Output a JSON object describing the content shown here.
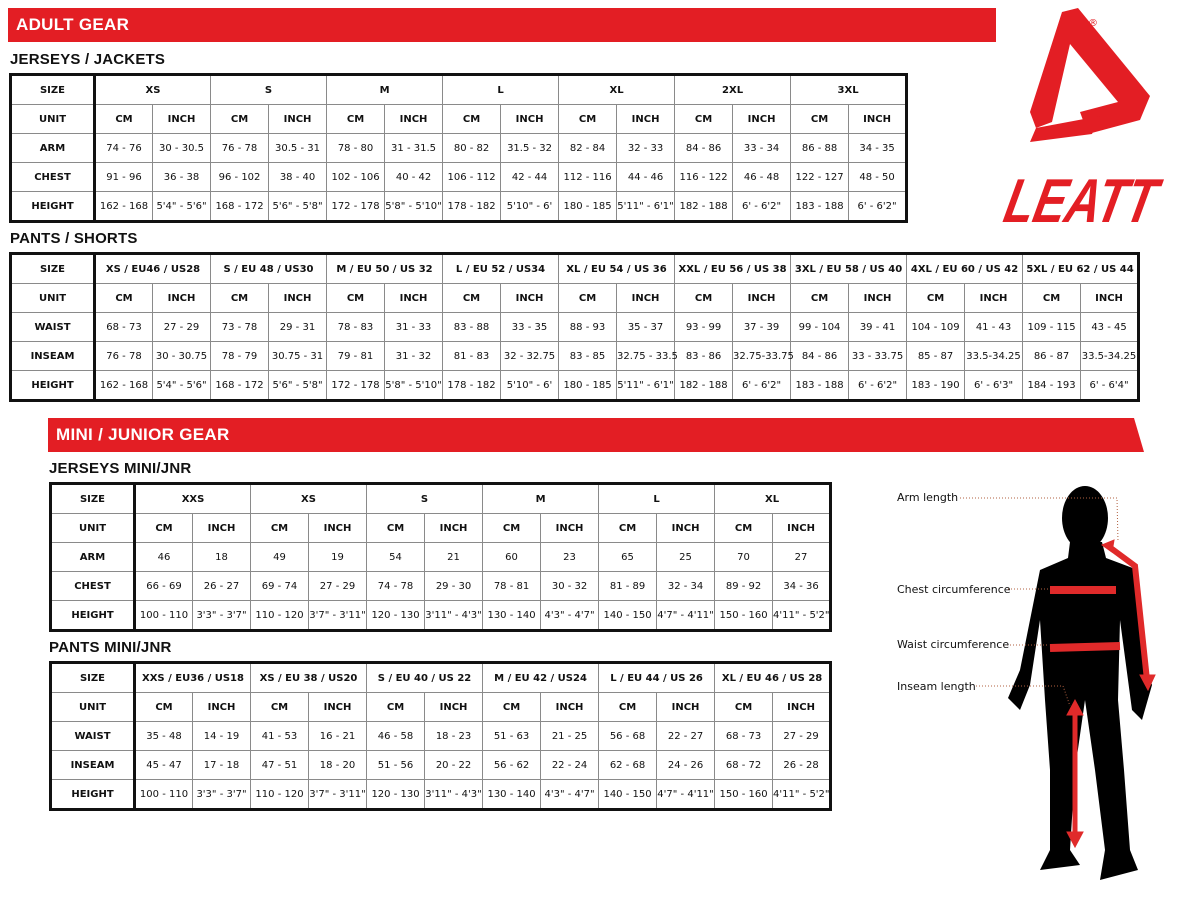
{
  "brand": {
    "logo_text": "LEATT",
    "registered_mark": "®",
    "accent_color": "#e31e24"
  },
  "adult_banner": "ADULT GEAR",
  "mini_banner": "MINI / JUNIOR GEAR",
  "tables": {
    "jackets": {
      "title": "JERSEYS / JACKETS",
      "size_label": "SIZE",
      "unit_label": "UNIT",
      "sizes": [
        "XS",
        "S",
        "M",
        "L",
        "XL",
        "2XL",
        "3XL"
      ],
      "units": [
        "CM",
        "INCH"
      ],
      "rows": [
        {
          "label": "ARM",
          "values": [
            "74 - 76",
            "30 - 30.5",
            "76 - 78",
            "30.5 - 31",
            "78 - 80",
            "31 - 31.5",
            "80 - 82",
            "31.5 - 32",
            "82 - 84",
            "32 - 33",
            "84 - 86",
            "33 - 34",
            "86 - 88",
            "34 - 35"
          ]
        },
        {
          "label": "CHEST",
          "values": [
            "91 - 96",
            "36 - 38",
            "96 - 102",
            "38 - 40",
            "102 - 106",
            "40 - 42",
            "106 - 112",
            "42 - 44",
            "112 - 116",
            "44 - 46",
            "116 - 122",
            "46 - 48",
            "122 - 127",
            "48 - 50"
          ]
        },
        {
          "label": "HEIGHT",
          "values": [
            "162 - 168",
            "5'4\" - 5'6\"",
            "168 - 172",
            "5'6\" - 5'8\"",
            "172 - 178",
            "5'8\" - 5'10\"",
            "178 - 182",
            "5'10\" - 6'",
            "180 - 185",
            "5'11\" - 6'1\"",
            "182 - 188",
            "6' - 6'2\"",
            "183 - 188",
            "6' - 6'2\""
          ]
        }
      ]
    },
    "pants": {
      "title": "PANTS / SHORTS",
      "size_label": "SIZE",
      "unit_label": "UNIT",
      "sizes": [
        "XS / EU46 / US28",
        "S / EU 48 / US30",
        "M / EU 50 / US 32",
        "L / EU 52 / US34",
        "XL / EU 54 / US 36",
        "XXL / EU 56 / US 38",
        "3XL / EU 58 / US 40",
        "4XL / EU 60 / US 42",
        "5XL / EU 62 / US 44"
      ],
      "units": [
        "CM",
        "INCH"
      ],
      "rows": [
        {
          "label": "WAIST",
          "values": [
            "68 - 73",
            "27 - 29",
            "73 - 78",
            "29 - 31",
            "78 - 83",
            "31  - 33",
            "83 - 88",
            "33 - 35",
            "88  - 93",
            "35 - 37",
            "93 - 99",
            "37 - 39",
            "99 - 104",
            "39 - 41",
            "104 - 109",
            "41 - 43",
            "109 - 115",
            "43 - 45"
          ]
        },
        {
          "label": "INSEAM",
          "values": [
            "76 - 78",
            "30 - 30.75",
            "78 - 79",
            "30.75 - 31",
            "79 - 81",
            "31 - 32",
            "81 - 83",
            "32 - 32.75",
            "83 - 85",
            "32.75 - 33.5",
            "83 - 86",
            "32.75-33.75",
            "84 - 86",
            "33 - 33.75",
            "85 - 87",
            "33.5-34.25",
            "86 - 87",
            "33.5-34.25"
          ]
        },
        {
          "label": "HEIGHT",
          "values": [
            "162 - 168",
            "5'4\" - 5'6\"",
            "168 - 172",
            "5'6\" - 5'8\"",
            "172 - 178",
            "5'8\" - 5'10\"",
            "178 - 182",
            "5'10\" - 6'",
            "180 - 185",
            "5'11\" - 6'1\"",
            "182 - 188",
            "6' - 6'2\"",
            "183 - 188",
            "6' - 6'2\"",
            "183 - 190",
            "6' - 6'3\"",
            "184 - 193",
            "6' - 6'4\""
          ]
        }
      ]
    },
    "mini_jerseys": {
      "title": "JERSEYS MINI/JNR",
      "size_label": "SIZE",
      "unit_label": "UNIT",
      "sizes": [
        "XXS",
        "XS",
        "S",
        "M",
        "L",
        "XL"
      ],
      "units": [
        "CM",
        "INCH"
      ],
      "rows": [
        {
          "label": "ARM",
          "values": [
            "46",
            "18",
            "49",
            "19",
            "54",
            "21",
            "60",
            "23",
            "65",
            "25",
            "70",
            "27"
          ]
        },
        {
          "label": "CHEST",
          "values": [
            "66 - 69",
            "26 - 27",
            "69 - 74",
            "27 - 29",
            "74 - 78",
            "29 - 30",
            "78 - 81",
            "30 - 32",
            "81 - 89",
            "32 - 34",
            "89 - 92",
            "34 - 36"
          ]
        },
        {
          "label": "HEIGHT",
          "values": [
            "100 - 110",
            "3'3\" - 3'7\"",
            "110 - 120",
            "3'7\" - 3'11\"",
            "120 - 130",
            "3'11\" - 4'3\"",
            "130 - 140",
            "4'3\" - 4'7\"",
            "140 - 150",
            "4'7\" - 4'11\"",
            "150 - 160",
            "4'11\" - 5'2\""
          ]
        }
      ]
    },
    "mini_pants": {
      "title": "PANTS MINI/JNR",
      "size_label": "SIZE",
      "unit_label": "UNIT",
      "sizes": [
        "XXS / EU36 / US18",
        "XS / EU 38 / US20",
        "S / EU 40 / US 22",
        "M / EU 42 / US24",
        "L / EU 44 / US 26",
        "XL / EU 46 / US 28"
      ],
      "units": [
        "CM",
        "INCH"
      ],
      "rows": [
        {
          "label": "WAIST",
          "values": [
            "35 - 48",
            "14 - 19",
            "41 - 53",
            "16 - 21",
            "46 - 58",
            "18  - 23",
            "51 - 63",
            "21 - 25",
            "56  - 68",
            "22 - 27",
            "68 - 73",
            "27 - 29"
          ]
        },
        {
          "label": "INSEAM",
          "values": [
            "45 - 47",
            "17 - 18",
            "47 - 51",
            "18 - 20",
            "51 - 56",
            "20 - 22",
            "56 - 62",
            "22 - 24",
            "62 - 68",
            "24 - 26",
            "68 - 72",
            "26 - 28"
          ]
        },
        {
          "label": "HEIGHT",
          "values": [
            "100 - 110",
            "3'3\" - 3'7\"",
            "110 - 120",
            "3'7\" - 3'11\"",
            "120 - 130",
            "3'11\" - 4'3\"",
            "130 - 140",
            "4'3\" - 4'7\"",
            "140 - 150",
            "4'7\" - 4'11\"",
            "150 - 160",
            "4'11\" - 5'2\""
          ]
        }
      ]
    }
  },
  "figure": {
    "labels": {
      "arm": "Arm length",
      "chest": "Chest circumference",
      "waist": "Waist circumference",
      "inseam": "Inseam length"
    }
  }
}
